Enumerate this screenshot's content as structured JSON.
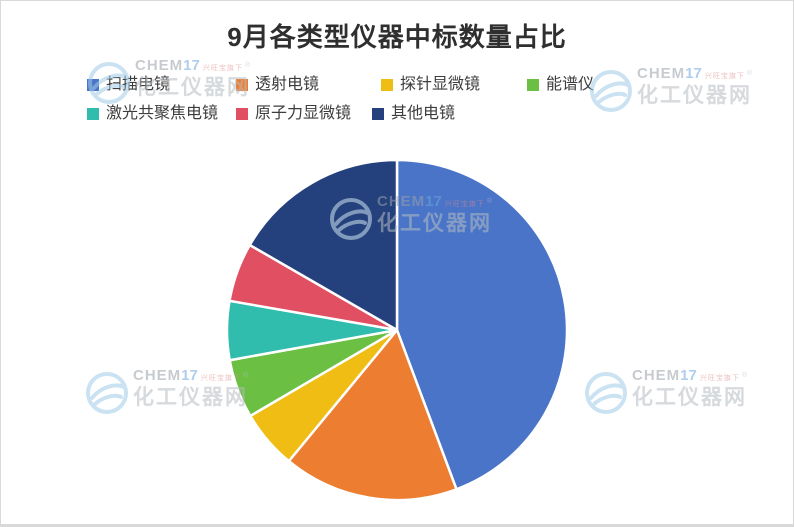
{
  "page": {
    "title": "9月各类型仪器中标数量占比"
  },
  "legend": {
    "position": "top",
    "items": [
      {
        "label": "扫描电镜",
        "color": "#4974C8"
      },
      {
        "label": "透射电镜",
        "color": "#EC7D31"
      },
      {
        "label": "探针显微镜",
        "color": "#EFBD13"
      },
      {
        "label": "能谱仪",
        "color": "#6BBF43"
      },
      {
        "label": "激光共聚焦电镜",
        "color": "#30BDAD"
      },
      {
        "label": "原子力显微镜",
        "color": "#E05062"
      },
      {
        "label": "其他电镜",
        "color": "#24417E"
      }
    ]
  },
  "watermark": {
    "brand_chem": "CHEM",
    "brand_17": "17",
    "tagline": "兴旺宝旗下",
    "registered_mark": "®",
    "site_name": "化工仪器网"
  },
  "chart_data": {
    "type": "pie",
    "title": "9月各类型仪器中标数量占比",
    "labels": [
      "扫描电镜",
      "透射电镜",
      "探针显微镜",
      "能谱仪",
      "激光共聚焦电镜",
      "原子力显微镜",
      "其他电镜"
    ],
    "values": [
      44.4,
      16.7,
      5.6,
      5.6,
      5.6,
      5.6,
      16.7
    ],
    "unit": "percent",
    "colors": [
      "#4974C8",
      "#EC7D31",
      "#EFBD13",
      "#6BBF43",
      "#30BDAD",
      "#E05062",
      "#24417E"
    ],
    "start_angle": "top",
    "direction": "clockwise",
    "slice_gap_stroke": "#ffffff",
    "legend_position": "top",
    "data_labels_shown": false
  }
}
